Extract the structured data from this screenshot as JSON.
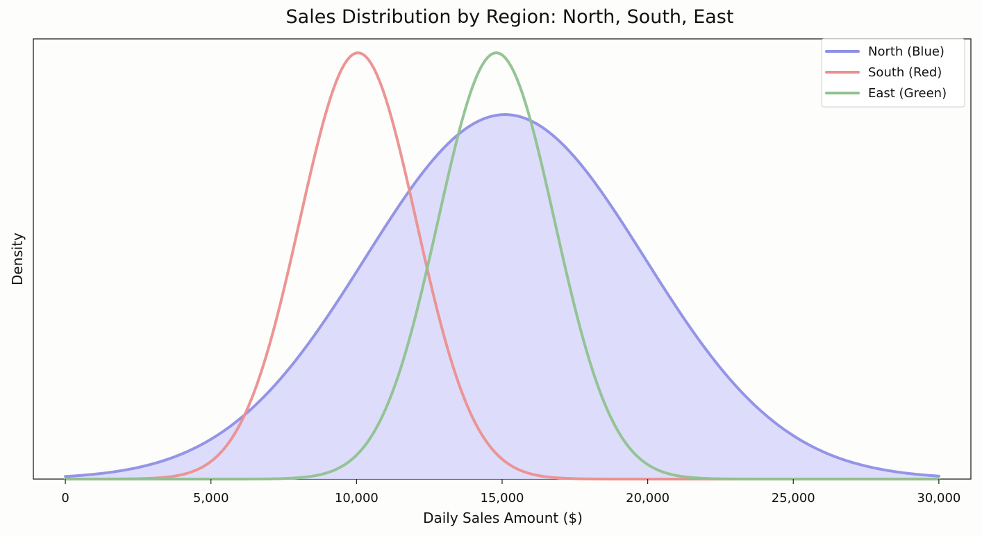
{
  "chart_data": {
    "type": "area",
    "title": "Sales Distribution by Region: North, South, East",
    "xlabel": "Daily Sales Amount ($)",
    "ylabel": "Density",
    "xlim": [
      -1100,
      31100
    ],
    "x_ticks": [
      0,
      5000,
      10000,
      15000,
      20000,
      25000,
      30000
    ],
    "x_tick_labels": [
      "0",
      "5,000",
      "10,000",
      "15,000",
      "20,000",
      "25,000",
      "30,000"
    ],
    "y_ticks_shown": false,
    "grid": false,
    "legend_position": "top-right",
    "series": [
      {
        "name": "North (Blue)",
        "color": "#8f8fe6",
        "fill_color": "#d8d8fb",
        "filled": true,
        "x_range": [
          0,
          30000
        ],
        "mean": 15100,
        "std": 4800,
        "relative_peak": 0.855
      },
      {
        "name": "South (Red)",
        "color": "#eb8f8f",
        "filled": false,
        "x_range": [
          0,
          30000
        ],
        "mean": 10050,
        "std": 2000,
        "relative_peak": 1.0
      },
      {
        "name": "East (Green)",
        "color": "#8fc18f",
        "filled": false,
        "x_range": [
          0,
          30000
        ],
        "mean": 14800,
        "std": 2000,
        "relative_peak": 1.0
      }
    ]
  }
}
